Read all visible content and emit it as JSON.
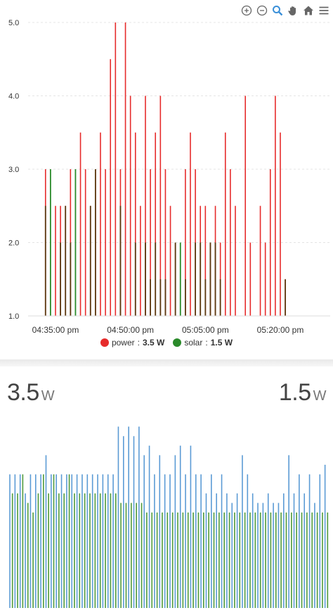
{
  "toolbar": {
    "zoom_in": "zoom-in-icon",
    "zoom_out": "zoom-out-icon",
    "zoom": "magnifier-icon",
    "pan": "hand-icon",
    "reset": "home-icon",
    "menu": "menu-icon"
  },
  "colors": {
    "power": "#e62b2b",
    "solar": "#2a8a2a",
    "overlap": "#5a3a10",
    "bottom_power": "#5b9bd5",
    "bottom_solar": "#4f9a3a",
    "grid": "#e4e4e4"
  },
  "chart_data": [
    {
      "type": "bar",
      "title": "",
      "ylim": [
        1.0,
        5.0
      ],
      "yticks": [
        "1.0",
        "2.0",
        "3.0",
        "4.0",
        "5.0"
      ],
      "xticks": [
        "04:35:00 pm",
        "04:50:00 pm",
        "05:05:00 pm",
        "05:20:00 pm"
      ],
      "x_minutes_from_first_tick": [
        -2,
        -1,
        0,
        1,
        2,
        3,
        4,
        5,
        6,
        7,
        8,
        9,
        10,
        11,
        12,
        13,
        14,
        15,
        16,
        17,
        18,
        19,
        20,
        21,
        22,
        23,
        24,
        25,
        26,
        27,
        28,
        29,
        30,
        31,
        32,
        33,
        34,
        35,
        36,
        37,
        38,
        39,
        40,
        41,
        42,
        43,
        44,
        45,
        46,
        47,
        48,
        49,
        50,
        51,
        52,
        53,
        54,
        55,
        56,
        57,
        58,
        59,
        60,
        61,
        62
      ],
      "series": [
        {
          "name": "power",
          "values": [
            3.0,
            null,
            2.5,
            2.5,
            2.5,
            3.0,
            null,
            3.5,
            3.0,
            2.5,
            3.0,
            3.5,
            3.0,
            4.5,
            5.0,
            3.0,
            5.0,
            4.0,
            3.5,
            2.5,
            4.0,
            3.0,
            3.5,
            4.0,
            3.0,
            2.5,
            2.0,
            null,
            3.0,
            3.5,
            3.0,
            2.5,
            2.5,
            2.0,
            2.5,
            2.0,
            3.5,
            3.0,
            2.5,
            null,
            4.0,
            2.0,
            null,
            2.5,
            2.0,
            3.0,
            4.0,
            3.5,
            1.5
          ]
        },
        {
          "name": "solar",
          "values": [
            2.5,
            3.0,
            null,
            2.0,
            2.5,
            2.0,
            3.0,
            null,
            null,
            2.5,
            3.0,
            null,
            null,
            null,
            null,
            2.5,
            null,
            null,
            2.0,
            null,
            2.0,
            1.5,
            2.0,
            1.5,
            1.5,
            null,
            2.0,
            2.0,
            1.5,
            null,
            2.0,
            2.0,
            1.5,
            2.0,
            2.0,
            1.5,
            null,
            null,
            null,
            null,
            null,
            null,
            null,
            null,
            null,
            null,
            null,
            null,
            1.5
          ]
        }
      ],
      "legend": [
        {
          "name": "power",
          "value": "3.5 W"
        },
        {
          "name": "solar",
          "value": "1.5 W"
        }
      ],
      "legend_position": "bottom-center",
      "grid": true
    },
    {
      "type": "bar",
      "series": [
        {
          "name": "power",
          "values": [
            0.7,
            0.7,
            0.7,
            0.6,
            0.7,
            0.7,
            0.7,
            0.8,
            0.7,
            0.7,
            0.7,
            0.7,
            0.7,
            0.7,
            0.7,
            0.7,
            0.7,
            0.7,
            0.7,
            0.7,
            0.7,
            0.95,
            0.9,
            0.95,
            0.9,
            0.95,
            0.8,
            0.85,
            0.7,
            0.8,
            0.7,
            0.7,
            0.8,
            0.85,
            0.7,
            0.85,
            0.7,
            0.7,
            0.6,
            0.7,
            0.6,
            0.7,
            0.6,
            0.55,
            0.6,
            0.8,
            0.7,
            0.6,
            0.55,
            0.55,
            0.6,
            0.55,
            0.55,
            0.6,
            0.8,
            0.6,
            0.7,
            0.6,
            0.7,
            0.55,
            0.7,
            0.75
          ]
        },
        {
          "name": "solar",
          "values": [
            0.6,
            0.6,
            0.7,
            0.55,
            0.5,
            0.6,
            0.7,
            0.6,
            0.7,
            0.6,
            0.6,
            0.7,
            0.6,
            0.6,
            0.6,
            0.6,
            0.6,
            0.6,
            0.6,
            0.6,
            0.6,
            0.55,
            0.55,
            0.55,
            0.55,
            0.55,
            0.5,
            0.5,
            0.5,
            0.5,
            0.5,
            0.5,
            0.5,
            0.5,
            0.5,
            0.5,
            0.5,
            0.5,
            0.5,
            0.5,
            0.5,
            0.5,
            0.5,
            0.5,
            0.5,
            0.5,
            0.5,
            0.5,
            0.5,
            0.5,
            0.5,
            0.5,
            0.5,
            0.5,
            0.5,
            0.5,
            0.5,
            0.5,
            0.5,
            0.5,
            0.5,
            0.5
          ]
        }
      ]
    }
  ],
  "bottom": {
    "left_value": "3.5",
    "left_unit": "W",
    "right_value": "1.5",
    "right_unit": "W"
  }
}
